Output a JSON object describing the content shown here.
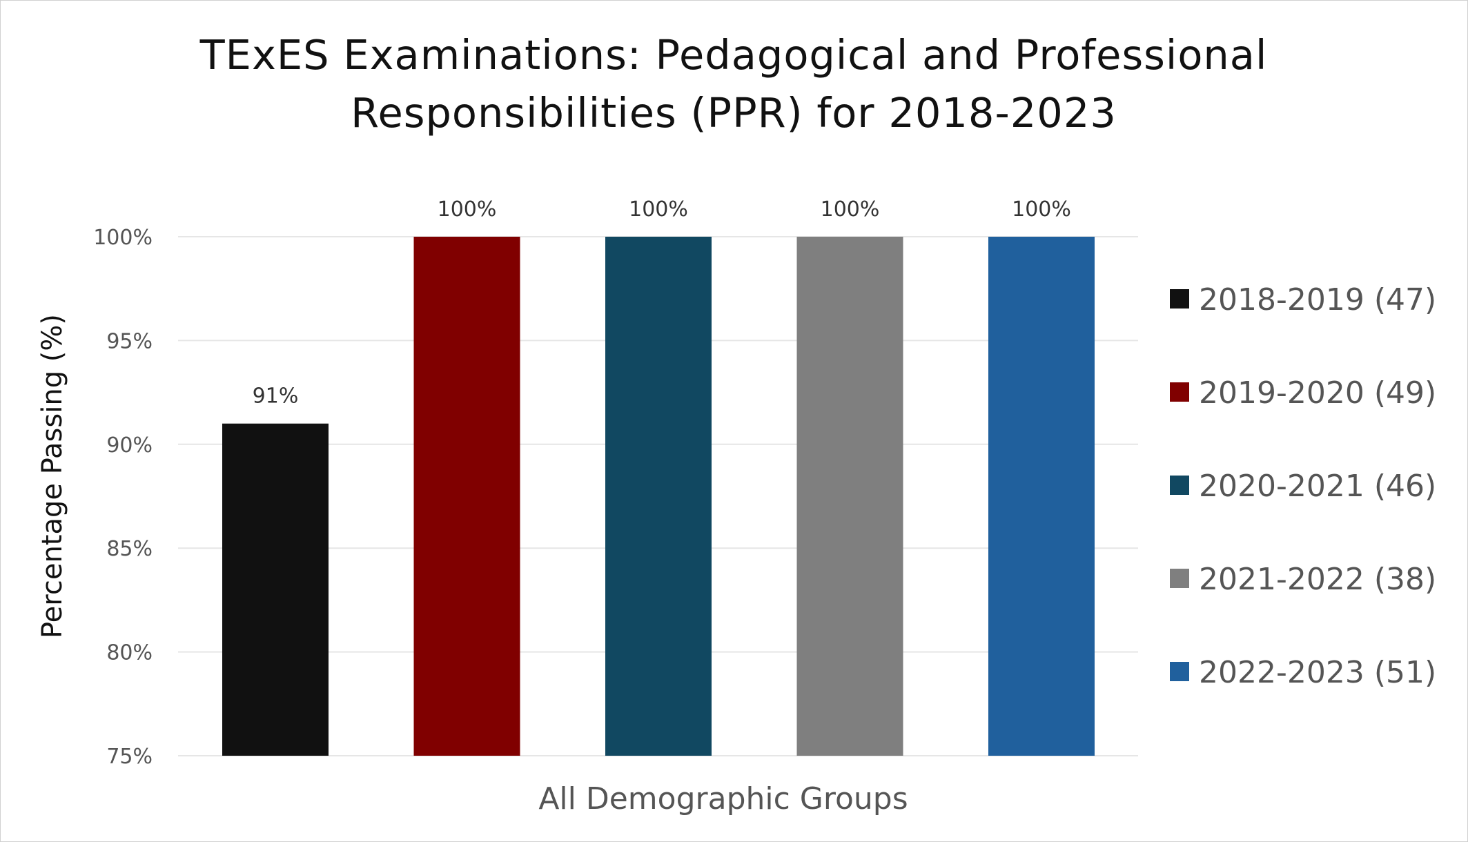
{
  "chart_data": {
    "type": "bar",
    "title_lines": [
      "TExES Examinations: Pedagogical and Professional",
      "Responsibilities (PPR) for 2018-2023"
    ],
    "xlabel": "All Demographic Groups",
    "ylabel": "Percentage Passing (%)",
    "categories": [
      "All Demographic Groups"
    ],
    "ylim": [
      75,
      100
    ],
    "yticks": [
      "75%",
      "80%",
      "85%",
      "90%",
      "95%",
      "100%"
    ],
    "ytick_values": [
      75,
      80,
      85,
      90,
      95,
      100
    ],
    "grid": true,
    "legend_position": "right",
    "series": [
      {
        "name": "2018-2019 (47)",
        "values": [
          91
        ],
        "label": "91%",
        "color": "#111111"
      },
      {
        "name": "2019-2020 (49)",
        "values": [
          100
        ],
        "label": "100%",
        "color": "#800000"
      },
      {
        "name": "2020-2021 (46)",
        "values": [
          100
        ],
        "label": "100%",
        "color": "#114861"
      },
      {
        "name": "2021-2022 (38)",
        "values": [
          100
        ],
        "label": "100%",
        "color": "#7f7f7f"
      },
      {
        "name": "2022-2023 (51)",
        "values": [
          100
        ],
        "label": "100%",
        "color": "#20609d"
      }
    ]
  }
}
